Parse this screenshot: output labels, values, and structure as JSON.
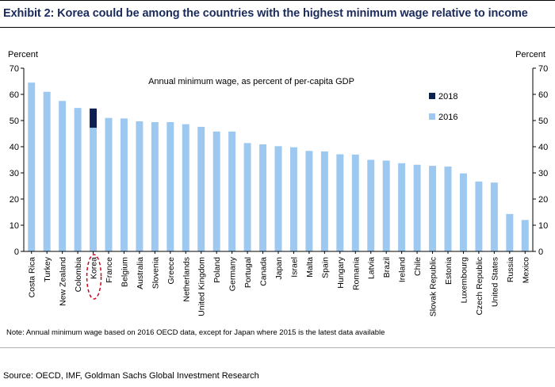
{
  "title": "Exhibit 2: Korea could be among the countries with the highest minimum wage relative to income",
  "note": "Note: Annual minimum wage based on 2016 OECD data, except for Japan where 2015 is the latest data available",
  "source": "Source: OECD, IMF, Goldman Sachs Global Investment Research",
  "colors": {
    "series_2016": "#9dc8f0",
    "series_2018": "#0c2151",
    "highlight": "#d0021b",
    "title": "#1a2a5a"
  },
  "chart_data": {
    "type": "bar",
    "title": "Annual minimum wage, as percent of per-capita GDP",
    "ylabel_left": "Percent",
    "ylabel_right": "Percent",
    "ylim": [
      0,
      70
    ],
    "yticks": [
      0,
      10,
      20,
      30,
      40,
      50,
      60,
      70
    ],
    "grid": false,
    "legend_placement": "top-right",
    "highlight_category": "Korea",
    "categories": [
      "Costa Rica",
      "Turkey",
      "New Zealand",
      "Colombia",
      "Korea",
      "France",
      "Belgium",
      "Australia",
      "Slovenia",
      "Greece",
      "Netherlands",
      "United Kingdom",
      "Poland",
      "Germany",
      "Portugal",
      "Canada",
      "Japan",
      "Israel",
      "Malta",
      "Spain",
      "Hungary",
      "Romania",
      "Latvia",
      "Brazil",
      "Ireland",
      "Chile",
      "Slovak Republic",
      "Estonia",
      "Luxembourg",
      "Czech Republic",
      "United States",
      "Russia",
      "Mexico"
    ],
    "series": [
      {
        "name": "2016",
        "values": [
          64.5,
          61.0,
          57.5,
          54.8,
          47.2,
          51.0,
          50.8,
          49.7,
          49.4,
          49.4,
          48.6,
          47.6,
          45.8,
          45.8,
          41.4,
          40.9,
          40.2,
          39.8,
          38.4,
          38.2,
          37.1,
          37.0,
          35.0,
          34.7,
          33.7,
          33.1,
          32.7,
          32.4,
          29.8,
          26.7,
          26.3,
          14.3,
          12.0
        ]
      },
      {
        "name": "2018",
        "values": [
          null,
          null,
          null,
          null,
          54.6,
          null,
          null,
          null,
          null,
          null,
          null,
          null,
          null,
          null,
          null,
          null,
          null,
          null,
          null,
          null,
          null,
          null,
          null,
          null,
          null,
          null,
          null,
          null,
          null,
          null,
          null,
          null,
          null
        ]
      }
    ]
  }
}
